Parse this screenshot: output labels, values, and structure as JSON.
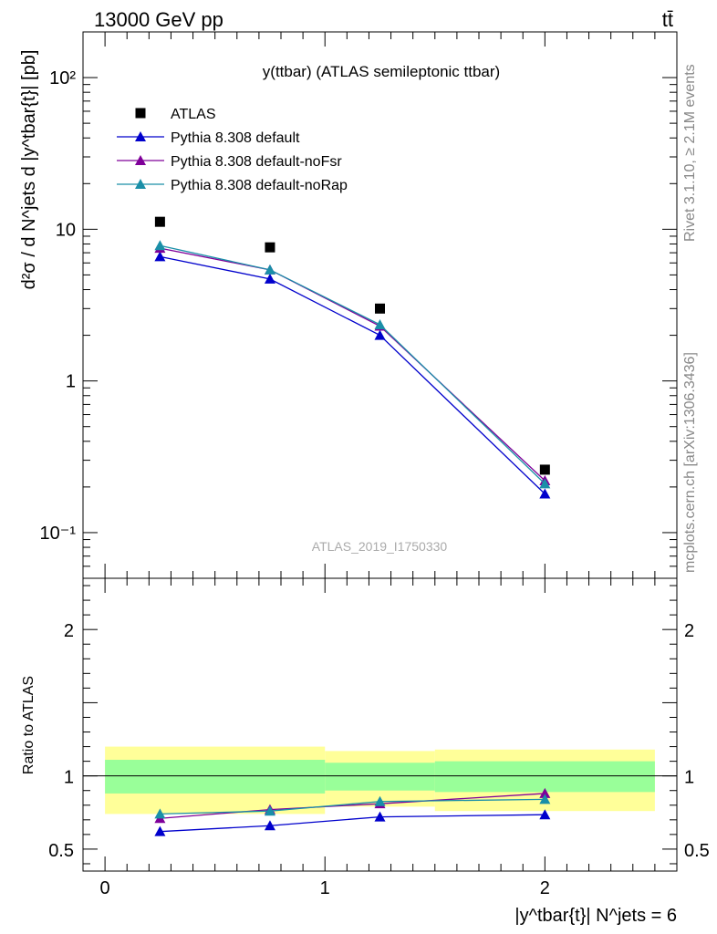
{
  "header": {
    "energy": "13000 GeV pp",
    "process": "tt̄"
  },
  "side_labels": {
    "rivet": "Rivet 3.1.10, ≥ 2.1M events",
    "source": "mcplots.cern.ch [arXiv:1306.3436]"
  },
  "chart_data": [
    {
      "type": "scatter",
      "title": "y(ttbar) (ATLAS semileptonic ttbar)",
      "watermark": "ATLAS_2019_I1750330",
      "ylabel": "d²σ / d N^jets d |y^tbar{t}| [pb]",
      "yscale": "log",
      "ylim": [
        0.05,
        200
      ],
      "xlim": [
        -0.1,
        2.6
      ],
      "yticks": [
        "10⁻¹",
        "1",
        "10",
        "10²"
      ],
      "x": [
        0.25,
        0.75,
        1.25,
        2.0
      ],
      "xerr": [
        0.25,
        0.25,
        0.25,
        0.5
      ],
      "legend": {
        "position": "top-left"
      },
      "series": [
        {
          "name": "ATLAS",
          "color": "#000000",
          "marker": "square",
          "values": [
            11.2,
            7.6,
            3.0,
            0.26
          ]
        },
        {
          "name": "Pythia 8.308 default",
          "color": "#0000cc",
          "marker": "triangle",
          "values": [
            6.6,
            4.7,
            2.0,
            0.18
          ]
        },
        {
          "name": "Pythia 8.308 default-noFsr",
          "color": "#7f0099",
          "marker": "triangle",
          "values": [
            7.5,
            5.4,
            2.3,
            0.22
          ]
        },
        {
          "name": "Pythia 8.308 default-noRap",
          "color": "#1a8fa8",
          "marker": "triangle",
          "values": [
            7.8,
            5.4,
            2.35,
            0.21
          ]
        }
      ]
    },
    {
      "type": "line",
      "ylabel": "Ratio to ATLAS",
      "xlabel": "|y^tbar{t}| N^jets = 6",
      "ylim": [
        0.35,
        2.35
      ],
      "xlim": [
        -0.1,
        2.6
      ],
      "xticks": [
        "0",
        "1",
        "2"
      ],
      "yticks": [
        "0.5",
        "1",
        "2"
      ],
      "bands": [
        {
          "x0": 0.0,
          "x1": 1.0,
          "stat_lo": 0.88,
          "stat_hi": 1.11,
          "tot_lo": 0.74,
          "tot_hi": 1.2
        },
        {
          "x0": 1.0,
          "x1": 1.5,
          "stat_lo": 0.9,
          "stat_hi": 1.09,
          "tot_lo": 0.79,
          "tot_hi": 1.17
        },
        {
          "x0": 1.5,
          "x1": 2.5,
          "stat_lo": 0.89,
          "stat_hi": 1.1,
          "tot_lo": 0.76,
          "tot_hi": 1.18
        }
      ],
      "band_colors": {
        "stat": "#99ff99",
        "total": "#ffff99"
      },
      "x": [
        0.25,
        0.75,
        1.25,
        2.0
      ],
      "series": [
        {
          "name": "Pythia 8.308 default",
          "color": "#0000cc",
          "values": [
            0.62,
            0.66,
            0.72,
            0.735
          ]
        },
        {
          "name": "Pythia 8.308 default-noFsr",
          "color": "#7f0099",
          "values": [
            0.71,
            0.77,
            0.81,
            0.88
          ]
        },
        {
          "name": "Pythia 8.308 default-noRap",
          "color": "#1a8fa8",
          "values": [
            0.74,
            0.76,
            0.825,
            0.84
          ]
        }
      ]
    }
  ]
}
